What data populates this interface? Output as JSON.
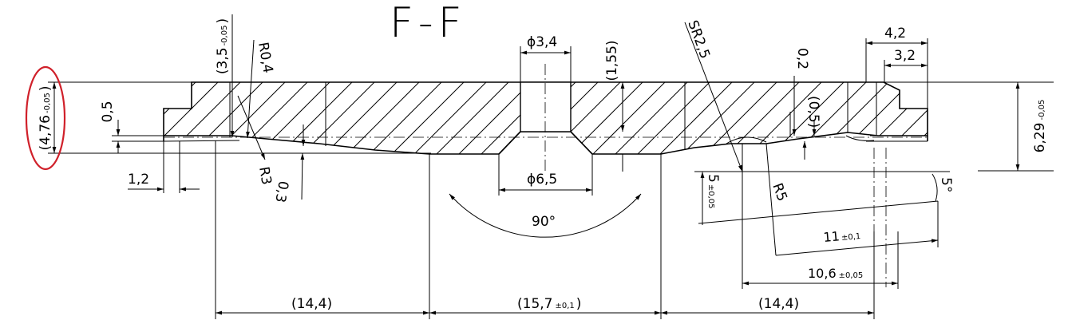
{
  "section": {
    "title": "F-F"
  },
  "dimensions": {
    "left_height": "(4,76",
    "left_height_tol": "-0,05",
    "left_height_close": ")",
    "step_depth": "(3,5",
    "step_depth_tol": "-0,05",
    "step_depth_close": ")",
    "radius_r04": "R0,4",
    "dim_05_left": "0,5",
    "radius_r3": "R3",
    "dim_03": "0,3",
    "dim_12": "1,2",
    "hole_dia": "ϕ3,4",
    "hole_depth": "(1,55)",
    "counter_dia": "ϕ6,5",
    "angle_90": "90°",
    "sphere_radius": "SR2,5",
    "dim_02": "0,2",
    "dim_05_right": "(0,5)",
    "dim_42": "4,2",
    "dim_32": "3,2",
    "right_height": "6,29",
    "right_height_tol": "-0,05",
    "dim_5": "5",
    "dim_5_tol": "±0,05",
    "radius_r5": "R5",
    "angle_5": "5°",
    "dim_11": "11",
    "dim_11_tol": "±0,1",
    "dim_106": "10,6",
    "dim_106_tol": "±0,05",
    "bottom_left": "(14,4)",
    "bottom_mid": "(15,7",
    "bottom_mid_tol": "±0,1",
    "bottom_mid_close": ")",
    "bottom_right": "(14,4)"
  },
  "highlight": {
    "color": "#d0202a"
  }
}
